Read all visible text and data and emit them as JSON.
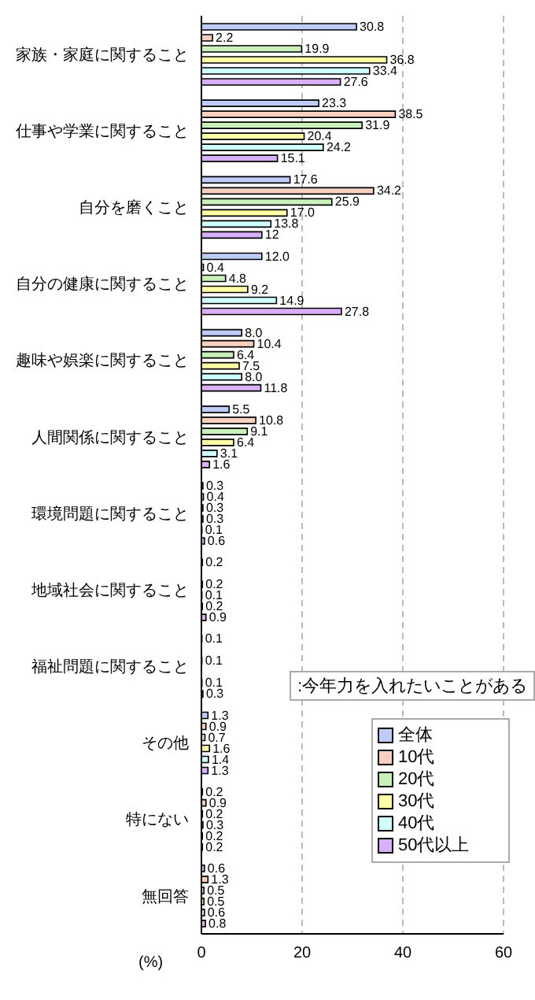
{
  "chart_data": {
    "type": "bar",
    "orientation": "horizontal",
    "xlabel": "(%)",
    "categories": [
      "家族・家庭に関すること",
      "仕事や学業に関すること",
      "自分を磨くこと",
      "自分の健康に関すること",
      "趣味や娯楽に関すること",
      "人間関係に関すること",
      "環境問題に関すること",
      "地域社会に関すること",
      "福祉問題に関すること",
      "その他",
      "特にない",
      "無回答"
    ],
    "series": [
      {
        "name": "全体",
        "color": "#c0ccf8",
        "values": [
          30.8,
          23.3,
          17.6,
          12.0,
          8.0,
          5.5,
          0.3,
          0.2,
          0.1,
          1.3,
          0.2,
          0.6
        ],
        "value_labels": [
          "30.8",
          "23.3",
          "17.6",
          "12.0",
          "8.0",
          "5.5",
          "0.3",
          "0.2",
          "0.1",
          "1.3",
          "0.2",
          "0.6"
        ]
      },
      {
        "name": "10代",
        "color": "#f8d0c0",
        "values": [
          2.2,
          38.5,
          34.2,
          0.4,
          10.4,
          10.8,
          0.4,
          null,
          null,
          0.9,
          0.9,
          1.3
        ],
        "value_labels": [
          "2.2",
          "38.5",
          "34.2",
          "0.4",
          "10.4",
          "10.8",
          "0.4",
          null,
          null,
          "0.9",
          "0.9",
          "1.3"
        ]
      },
      {
        "name": "20代",
        "color": "#c8f0b8",
        "values": [
          19.9,
          31.9,
          25.9,
          4.8,
          6.4,
          9.1,
          0.3,
          0.2,
          0.1,
          0.7,
          0.2,
          0.5
        ],
        "value_labels": [
          "19.9",
          "31.9",
          "25.9",
          "4.8",
          "6.4",
          "9.1",
          "0.3",
          "0.2",
          "0.1",
          "0.7",
          "0.2",
          "0.5"
        ]
      },
      {
        "name": "30代",
        "color": "#ffffa8",
        "values": [
          36.8,
          20.4,
          17.0,
          9.2,
          7.5,
          6.4,
          0.3,
          0.1,
          null,
          1.6,
          0.3,
          0.5
        ],
        "value_labels": [
          "36.8",
          "20.4",
          "17.0",
          "9.2",
          "7.5",
          "6.4",
          "0.3",
          "0.1",
          null,
          "1.6",
          "0.3",
          "0.5"
        ]
      },
      {
        "name": "40代",
        "color": "#d0ffff",
        "values": [
          33.4,
          24.2,
          13.8,
          14.9,
          8.0,
          3.1,
          0.1,
          0.2,
          0.1,
          1.4,
          0.2,
          0.6
        ],
        "value_labels": [
          "33.4",
          "24.2",
          "13.8",
          "14.9",
          "8.0",
          "3.1",
          "0.1",
          "0.2",
          "0.1",
          "1.4",
          "0.2",
          "0.6"
        ]
      },
      {
        "name": "50代以上",
        "color": "#d8b0f8",
        "values": [
          27.6,
          15.1,
          12,
          27.8,
          11.8,
          1.6,
          0.6,
          0.9,
          0.3,
          1.3,
          0.2,
          0.8
        ],
        "value_labels": [
          "27.6",
          "15.1",
          "12",
          "27.8",
          "11.8",
          "1.6",
          "0.6",
          "0.9",
          "0.3",
          "1.3",
          "0.2",
          "0.8"
        ]
      }
    ],
    "xlim": [
      0,
      60
    ],
    "xticks": [
      0,
      20,
      40,
      60
    ],
    "grid": "x",
    "legend": "bottom right",
    "annotations": [
      ":今年力を入れたいことがある"
    ]
  }
}
